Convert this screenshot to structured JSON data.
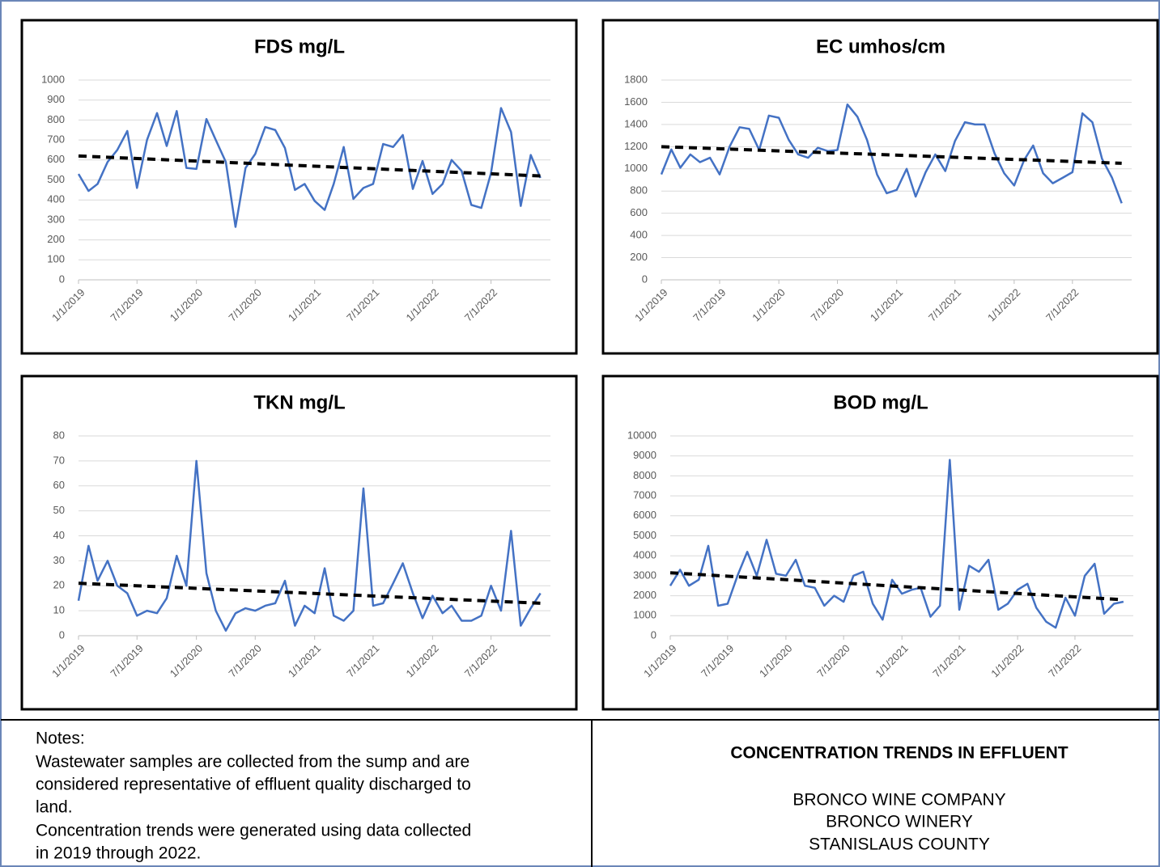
{
  "chart_data": [
    {
      "type": "line",
      "title": "FDS mg/L",
      "x": [
        "1/1/2019",
        "2/1/2019",
        "3/1/2019",
        "4/1/2019",
        "5/1/2019",
        "6/1/2019",
        "7/1/2019",
        "8/1/2019",
        "9/1/2019",
        "10/1/2019",
        "11/1/2019",
        "12/1/2019",
        "1/1/2020",
        "2/1/2020",
        "3/1/2020",
        "4/1/2020",
        "5/1/2020",
        "6/1/2020",
        "7/1/2020",
        "8/1/2020",
        "9/1/2020",
        "10/1/2020",
        "11/1/2020",
        "12/1/2020",
        "1/1/2021",
        "2/1/2021",
        "3/1/2021",
        "4/1/2021",
        "5/1/2021",
        "6/1/2021",
        "7/1/2021",
        "8/1/2021",
        "9/1/2021",
        "10/1/2021",
        "11/1/2021",
        "12/1/2021",
        "1/1/2022",
        "2/1/2022",
        "3/1/2022",
        "4/1/2022",
        "5/1/2022",
        "6/1/2022",
        "7/1/2022",
        "8/1/2022",
        "9/1/2022",
        "10/1/2022",
        "11/1/2022",
        "12/1/2022"
      ],
      "series": [
        {
          "color": "#4472c4",
          "values": [
            530,
            445,
            480,
            590,
            650,
            745,
            460,
            700,
            835,
            670,
            845,
            560,
            555,
            805,
            700,
            590,
            265,
            560,
            630,
            765,
            750,
            660,
            450,
            480,
            395,
            350,
            480,
            665,
            405,
            460,
            480,
            680,
            665,
            725,
            455,
            595,
            430,
            480,
            600,
            545,
            375,
            360,
            535,
            860,
            740,
            370,
            625,
            510
          ]
        }
      ],
      "trend": {
        "color": "#000000",
        "values": [
          620,
          520
        ]
      },
      "xlim": [
        "1/1/2019",
        "1/1/2023"
      ],
      "xticks": [
        "1/1/2019",
        "7/1/2019",
        "1/1/2020",
        "7/1/2020",
        "1/1/2021",
        "7/1/2021",
        "1/1/2022",
        "7/1/2022"
      ],
      "ylim": [
        0,
        1000
      ],
      "yticks": [
        0,
        100,
        200,
        300,
        400,
        500,
        600,
        700,
        800,
        900,
        1000
      ],
      "grid": true
    },
    {
      "type": "line",
      "title": "EC umhos/cm",
      "x": [
        "1/1/2019",
        "2/1/2019",
        "3/1/2019",
        "4/1/2019",
        "5/1/2019",
        "6/1/2019",
        "7/1/2019",
        "8/1/2019",
        "9/1/2019",
        "10/1/2019",
        "11/1/2019",
        "12/1/2019",
        "1/1/2020",
        "2/1/2020",
        "3/1/2020",
        "4/1/2020",
        "5/1/2020",
        "6/1/2020",
        "7/1/2020",
        "8/1/2020",
        "9/1/2020",
        "10/1/2020",
        "11/1/2020",
        "12/1/2020",
        "1/1/2021",
        "2/1/2021",
        "3/1/2021",
        "4/1/2021",
        "5/1/2021",
        "6/1/2021",
        "7/1/2021",
        "8/1/2021",
        "9/1/2021",
        "10/1/2021",
        "11/1/2021",
        "12/1/2021",
        "1/1/2022",
        "2/1/2022",
        "3/1/2022",
        "4/1/2022",
        "5/1/2022",
        "6/1/2022",
        "7/1/2022",
        "8/1/2022",
        "9/1/2022",
        "10/1/2022",
        "11/1/2022",
        "12/1/2022"
      ],
      "series": [
        {
          "color": "#4472c4",
          "values": [
            950,
            1175,
            1010,
            1130,
            1060,
            1100,
            950,
            1200,
            1375,
            1360,
            1170,
            1480,
            1460,
            1260,
            1130,
            1100,
            1190,
            1160,
            1170,
            1580,
            1470,
            1260,
            950,
            780,
            810,
            1000,
            750,
            970,
            1130,
            980,
            1250,
            1420,
            1400,
            1400,
            1140,
            960,
            850,
            1080,
            1210,
            960,
            870,
            920,
            970,
            1500,
            1420,
            1090,
            920,
            690
          ]
        }
      ],
      "trend": {
        "color": "#000000",
        "values": [
          1200,
          1050
        ]
      },
      "xlim": [
        "1/1/2019",
        "1/1/2023"
      ],
      "xticks": [
        "1/1/2019",
        "7/1/2019",
        "1/1/2020",
        "7/1/2020",
        "1/1/2021",
        "7/1/2021",
        "1/1/2022",
        "7/1/2022"
      ],
      "ylim": [
        0,
        1800
      ],
      "yticks": [
        0,
        200,
        400,
        600,
        800,
        1000,
        1200,
        1400,
        1600,
        1800
      ],
      "grid": true
    },
    {
      "type": "line",
      "title": "TKN mg/L",
      "x": [
        "1/1/2019",
        "2/1/2019",
        "3/1/2019",
        "4/1/2019",
        "5/1/2019",
        "6/1/2019",
        "7/1/2019",
        "8/1/2019",
        "9/1/2019",
        "10/1/2019",
        "11/1/2019",
        "12/1/2019",
        "1/1/2020",
        "2/1/2020",
        "3/1/2020",
        "4/1/2020",
        "5/1/2020",
        "6/1/2020",
        "7/1/2020",
        "8/1/2020",
        "9/1/2020",
        "10/1/2020",
        "11/1/2020",
        "12/1/2020",
        "1/1/2021",
        "2/1/2021",
        "3/1/2021",
        "4/1/2021",
        "5/1/2021",
        "6/1/2021",
        "7/1/2021",
        "8/1/2021",
        "9/1/2021",
        "10/1/2021",
        "11/1/2021",
        "12/1/2021",
        "1/1/2022",
        "2/1/2022",
        "3/1/2022",
        "4/1/2022",
        "5/1/2022",
        "6/1/2022",
        "7/1/2022",
        "8/1/2022",
        "9/1/2022",
        "10/1/2022",
        "11/1/2022",
        "12/1/2022"
      ],
      "series": [
        {
          "color": "#4472c4",
          "values": [
            14,
            36,
            22,
            30,
            20,
            17,
            8,
            10,
            9,
            15,
            32,
            20,
            70,
            25,
            10,
            2,
            9,
            11,
            10,
            12,
            13,
            22,
            4,
            12,
            9,
            27,
            8,
            6,
            10,
            59,
            12,
            13,
            21,
            29,
            17,
            7,
            16,
            9,
            12,
            6,
            6,
            8,
            20,
            10,
            42,
            4,
            11,
            17
          ]
        }
      ],
      "trend": {
        "color": "#000000",
        "values": [
          21,
          13
        ]
      },
      "xlim": [
        "1/1/2019",
        "1/1/2023"
      ],
      "xticks": [
        "1/1/2019",
        "7/1/2019",
        "1/1/2020",
        "7/1/2020",
        "1/1/2021",
        "7/1/2021",
        "1/1/2022",
        "7/1/2022"
      ],
      "ylim": [
        0,
        80
      ],
      "yticks": [
        0,
        10,
        20,
        30,
        40,
        50,
        60,
        70,
        80
      ],
      "grid": true
    },
    {
      "type": "line",
      "title": "BOD mg/L",
      "x": [
        "1/1/2019",
        "2/1/2019",
        "3/1/2019",
        "4/1/2019",
        "5/1/2019",
        "6/1/2019",
        "7/1/2019",
        "8/1/2019",
        "9/1/2019",
        "10/1/2019",
        "11/1/2019",
        "12/1/2019",
        "1/1/2020",
        "2/1/2020",
        "3/1/2020",
        "4/1/2020",
        "5/1/2020",
        "6/1/2020",
        "7/1/2020",
        "8/1/2020",
        "9/1/2020",
        "10/1/2020",
        "11/1/2020",
        "12/1/2020",
        "1/1/2021",
        "2/1/2021",
        "3/1/2021",
        "4/1/2021",
        "5/1/2021",
        "6/1/2021",
        "7/1/2021",
        "8/1/2021",
        "9/1/2021",
        "10/1/2021",
        "11/1/2021",
        "12/1/2021",
        "1/1/2022",
        "2/1/2022",
        "3/1/2022",
        "4/1/2022",
        "5/1/2022",
        "6/1/2022",
        "7/1/2022",
        "8/1/2022",
        "9/1/2022",
        "10/1/2022",
        "11/1/2022",
        "12/1/2022"
      ],
      "series": [
        {
          "color": "#4472c4",
          "values": [
            2500,
            3300,
            2500,
            2800,
            4500,
            1500,
            1600,
            3000,
            4200,
            3000,
            4800,
            3100,
            3000,
            3800,
            2500,
            2400,
            1500,
            2000,
            1700,
            3000,
            3200,
            1600,
            800,
            2800,
            2100,
            2300,
            2400,
            950,
            1500,
            8800,
            1300,
            3500,
            3200,
            3800,
            1300,
            1600,
            2300,
            2600,
            1400,
            700,
            400,
            1900,
            1000,
            3000,
            3600,
            1100,
            1600,
            1700
          ]
        }
      ],
      "trend": {
        "color": "#000000",
        "values": [
          3150,
          1800
        ]
      },
      "xlim": [
        "1/1/2019",
        "1/1/2023"
      ],
      "xticks": [
        "1/1/2019",
        "7/1/2019",
        "1/1/2020",
        "7/1/2020",
        "1/1/2021",
        "7/1/2021",
        "1/1/2022",
        "7/1/2022"
      ],
      "ylim": [
        0,
        10000
      ],
      "yticks": [
        0,
        1000,
        2000,
        3000,
        4000,
        5000,
        6000,
        7000,
        8000,
        9000,
        10000
      ],
      "grid": true
    }
  ],
  "notes": {
    "heading": "Notes:",
    "lines": [
      "Wastewater samples are collected from the sump and are",
      "considered representative of effluent quality discharged to",
      "land.",
      "Concentration trends were generated using data collected",
      "in 2019 through 2022."
    ]
  },
  "title_block": {
    "title": "CONCENTRATION TRENDS IN EFFLUENT",
    "lines": [
      "BRONCO WINE COMPANY",
      "BRONCO WINERY",
      "STANISLAUS COUNTY"
    ]
  }
}
